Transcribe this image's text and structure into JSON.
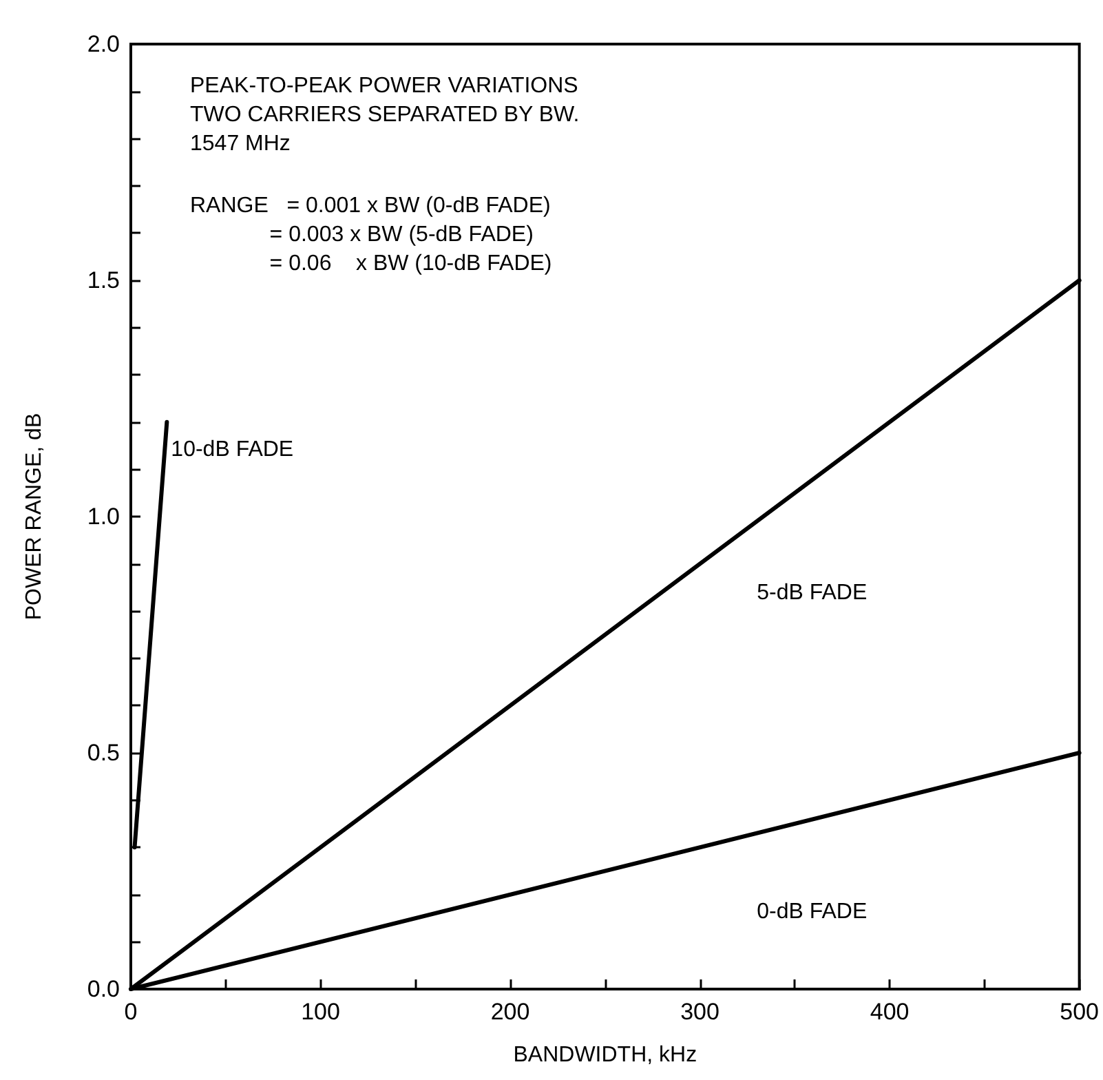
{
  "chart_data": {
    "type": "line",
    "xlabel": "BANDWIDTH, kHz",
    "ylabel": "POWER RANGE, dB",
    "xlim": [
      0,
      500
    ],
    "ylim": [
      0,
      2
    ],
    "xticks": [
      0,
      {
        "value": 50,
        "label": null
      },
      100,
      {
        "value": 150,
        "label": null
      },
      200,
      {
        "value": 250,
        "label": null
      },
      300,
      {
        "value": 350,
        "label": null
      },
      400,
      {
        "value": 450,
        "label": null
      },
      500
    ],
    "yticks": [
      {
        "value": 0,
        "label": "0.0"
      },
      {
        "value": 0.1,
        "label": null
      },
      {
        "value": 0.2,
        "label": null
      },
      {
        "value": 0.3,
        "label": null
      },
      {
        "value": 0.4,
        "label": null
      },
      {
        "value": 0.5,
        "label": "0.5"
      },
      {
        "value": 0.6,
        "label": null
      },
      {
        "value": 0.7,
        "label": null
      },
      {
        "value": 0.8,
        "label": null
      },
      {
        "value": 0.9,
        "label": null
      },
      {
        "value": 1,
        "label": "1.0"
      },
      {
        "value": 1.1,
        "label": null
      },
      {
        "value": 1.2,
        "label": null
      },
      {
        "value": 1.3,
        "label": null
      },
      {
        "value": 1.4,
        "label": null
      },
      {
        "value": 1.5,
        "label": "1.5"
      },
      {
        "value": 1.6,
        "label": null
      },
      {
        "value": 1.7,
        "label": null
      },
      {
        "value": 1.8,
        "label": null
      },
      {
        "value": 1.9,
        "label": null
      },
      {
        "value": 2,
        "label": "2.0"
      }
    ],
    "series": [
      {
        "name": "0-dB FADE",
        "color": "#000000",
        "x": [
          0,
          500
        ],
        "values": [
          0,
          0.5
        ]
      },
      {
        "name": "5-dB FADE",
        "color": "#000000",
        "x": [
          0,
          500
        ],
        "values": [
          0,
          1.5
        ]
      },
      {
        "name": "10-dB FADE",
        "color": "#000000",
        "x": [
          2,
          19
        ],
        "values": [
          0.3,
          1.2
        ]
      }
    ],
    "marker": "none",
    "line_style": "solid",
    "grid": false,
    "legend": false,
    "annotations": [
      "PEAK-TO-PEAK POWER VARIATIONS\nTWO CARRIERS SEPARATED BY BW.\n1547 MHz",
      "RANGE   = 0.001 x BW (0-dB FADE)\n             = 0.003 x BW (5-dB FADE)\n             = 0.06    x BW (10-dB FADE)"
    ]
  }
}
